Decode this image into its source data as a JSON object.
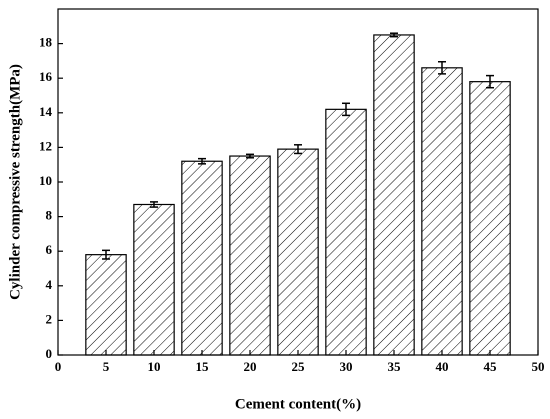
{
  "chart_data": {
    "type": "bar",
    "x_label": "Cement content(%)",
    "y_label": "Cylinder compressive strength(MPa)",
    "x": [
      5,
      10,
      15,
      20,
      25,
      30,
      35,
      40,
      45
    ],
    "values": [
      5.8,
      8.7,
      11.2,
      11.5,
      11.9,
      14.2,
      18.5,
      16.6,
      15.8
    ],
    "errors": [
      0.25,
      0.15,
      0.15,
      0.1,
      0.25,
      0.35,
      0.1,
      0.35,
      0.35
    ],
    "color": "#000000",
    "xlim": [
      0,
      50
    ],
    "xticks": [
      0,
      5,
      10,
      15,
      20,
      25,
      30,
      35,
      40,
      45,
      50
    ],
    "ylim": [
      0,
      20
    ],
    "yticks": [
      0,
      2,
      4,
      6,
      8,
      10,
      12,
      14,
      16,
      18
    ]
  }
}
